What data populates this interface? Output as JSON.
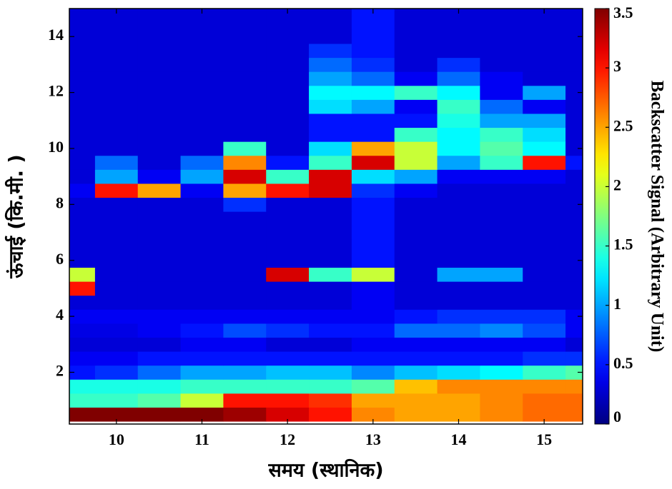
{
  "chart_data": {
    "type": "heatmap",
    "x_label": "समय (स्थानिक)",
    "y_label": "ऊंचाई (कि.मी. )",
    "colorbar_label": "Backscatter Signal (Arbitrary Unit)",
    "colormap": "jet",
    "x": [
      9.5,
      10,
      10.5,
      11,
      11.5,
      12,
      12.5,
      13,
      13.5,
      14,
      14.5,
      15,
      15.5
    ],
    "y": [
      0.5,
      1,
      1.5,
      2,
      2.5,
      3,
      3.5,
      4,
      4.5,
      5,
      5.5,
      6,
      6.5,
      7,
      7.5,
      8,
      8.5,
      9,
      9.5,
      10,
      10.5,
      11,
      11.5,
      12,
      12.5,
      13,
      13.5,
      14,
      14.5,
      15
    ],
    "values": [
      [
        3.5,
        3.5,
        3.5,
        3.5,
        3.4,
        3.2,
        3.0,
        2.6,
        2.5,
        2.5,
        2.6,
        2.7,
        2.7
      ],
      [
        1.5,
        1.5,
        1.6,
        2.0,
        3.0,
        3.0,
        2.9,
        2.5,
        2.5,
        2.5,
        2.6,
        2.7,
        2.7
      ],
      [
        1.4,
        1.4,
        1.4,
        1.5,
        1.5,
        1.5,
        1.5,
        1.6,
        2.4,
        2.6,
        2.6,
        2.6,
        2.6
      ],
      [
        0.5,
        0.6,
        0.8,
        1.0,
        1.0,
        1.1,
        1.1,
        0.9,
        1.1,
        1.2,
        1.3,
        1.5,
        1.6
      ],
      [
        0.4,
        0.4,
        0.5,
        0.5,
        0.5,
        0.5,
        0.5,
        0.5,
        0.5,
        0.5,
        0.5,
        0.6,
        0.6
      ],
      [
        0.3,
        0.3,
        0.3,
        0.4,
        0.4,
        0.3,
        0.3,
        0.4,
        0.4,
        0.4,
        0.4,
        0.4,
        0.3
      ],
      [
        0.35,
        0.35,
        0.4,
        0.5,
        0.7,
        0.6,
        0.5,
        0.5,
        0.8,
        0.8,
        0.9,
        0.7,
        0.4
      ],
      [
        0.4,
        0.4,
        0.4,
        0.4,
        0.4,
        0.4,
        0.4,
        0.4,
        0.5,
        0.6,
        0.6,
        0.6,
        0.4
      ],
      [
        0.3,
        0.3,
        0.3,
        0.3,
        0.3,
        0.3,
        0.3,
        0.4,
        0.3,
        0.3,
        0.3,
        0.3,
        0.3
      ],
      [
        3.0,
        0.3,
        0.3,
        0.3,
        0.3,
        0.3,
        0.3,
        0.4,
        0.3,
        0.3,
        0.3,
        0.3,
        0.3
      ],
      [
        2.0,
        0.3,
        0.3,
        0.3,
        0.3,
        3.2,
        1.5,
        2.0,
        0.3,
        1.0,
        1.0,
        0.3,
        0.3
      ],
      [
        0.3,
        0.3,
        0.3,
        0.3,
        0.3,
        0.3,
        0.3,
        0.5,
        0.3,
        0.3,
        0.3,
        0.3,
        0.3
      ],
      [
        0.3,
        0.3,
        0.3,
        0.3,
        0.3,
        0.3,
        0.3,
        0.5,
        0.3,
        0.3,
        0.3,
        0.3,
        0.3
      ],
      [
        0.3,
        0.3,
        0.3,
        0.3,
        0.3,
        0.3,
        0.3,
        0.5,
        0.3,
        0.3,
        0.3,
        0.3,
        0.3
      ],
      [
        0.3,
        0.3,
        0.3,
        0.3,
        0.3,
        0.3,
        0.3,
        0.5,
        0.3,
        0.3,
        0.3,
        0.3,
        0.3
      ],
      [
        0.3,
        0.3,
        0.3,
        0.3,
        0.6,
        0.3,
        0.3,
        0.5,
        0.3,
        0.3,
        0.3,
        0.3,
        0.3
      ],
      [
        0.4,
        3.0,
        2.5,
        0.4,
        2.5,
        3.0,
        3.2,
        0.6,
        0.4,
        0.3,
        0.3,
        0.3,
        0.3
      ],
      [
        0.3,
        1.0,
        0.4,
        1.0,
        3.2,
        1.5,
        3.2,
        1.2,
        1.0,
        0.4,
        0.4,
        0.4,
        0.3
      ],
      [
        0.3,
        0.8,
        0.3,
        0.8,
        2.6,
        0.5,
        1.5,
        3.2,
        2.0,
        1.0,
        1.5,
        3.0,
        0.5
      ],
      [
        0.3,
        0.3,
        0.3,
        0.3,
        1.5,
        0.3,
        1.2,
        2.5,
        2.0,
        1.3,
        1.6,
        1.3,
        0.3
      ],
      [
        0.3,
        0.3,
        0.3,
        0.3,
        0.3,
        0.3,
        0.5,
        0.5,
        1.5,
        1.3,
        1.5,
        1.2,
        0.3
      ],
      [
        0.3,
        0.3,
        0.3,
        0.3,
        0.3,
        0.3,
        0.5,
        0.5,
        0.5,
        1.4,
        1.0,
        1.0,
        0.3
      ],
      [
        0.3,
        0.3,
        0.3,
        0.3,
        0.3,
        0.3,
        1.2,
        1.0,
        0.4,
        1.5,
        0.8,
        0.4,
        0.3
      ],
      [
        0.3,
        0.3,
        0.3,
        0.3,
        0.3,
        0.3,
        1.3,
        1.3,
        1.5,
        1.3,
        0.4,
        1.0,
        0.3
      ],
      [
        0.3,
        0.3,
        0.3,
        0.3,
        0.3,
        0.3,
        1.0,
        0.8,
        0.4,
        0.8,
        0.4,
        0.3,
        0.3
      ],
      [
        0.3,
        0.3,
        0.3,
        0.3,
        0.3,
        0.3,
        0.8,
        0.6,
        0.3,
        0.6,
        0.3,
        0.3,
        0.3
      ],
      [
        0.3,
        0.3,
        0.3,
        0.3,
        0.3,
        0.3,
        0.6,
        0.5,
        0.3,
        0.3,
        0.3,
        0.3,
        0.3
      ],
      [
        0.3,
        0.3,
        0.3,
        0.3,
        0.3,
        0.3,
        0.3,
        0.5,
        0.3,
        0.3,
        0.3,
        0.3,
        0.3
      ],
      [
        0.3,
        0.3,
        0.3,
        0.3,
        0.3,
        0.3,
        0.3,
        0.5,
        0.3,
        0.3,
        0.3,
        0.3,
        0.3
      ],
      [
        0.3,
        0.3,
        0.3,
        0.3,
        0.3,
        0.3,
        0.3,
        0.5,
        0.3,
        0.3,
        0.3,
        0.3,
        0.3
      ]
    ],
    "xlim": [
      9.45,
      15.45
    ],
    "xticks": [
      10,
      11,
      12,
      13,
      14,
      15
    ],
    "ylim": [
      0.15,
      15
    ],
    "yticks": [
      2,
      4,
      6,
      8,
      10,
      12,
      14
    ],
    "clim": [
      0,
      3.5
    ],
    "cticks": [
      0,
      0.5,
      1,
      1.5,
      2,
      2.5,
      3,
      3.5
    ]
  }
}
